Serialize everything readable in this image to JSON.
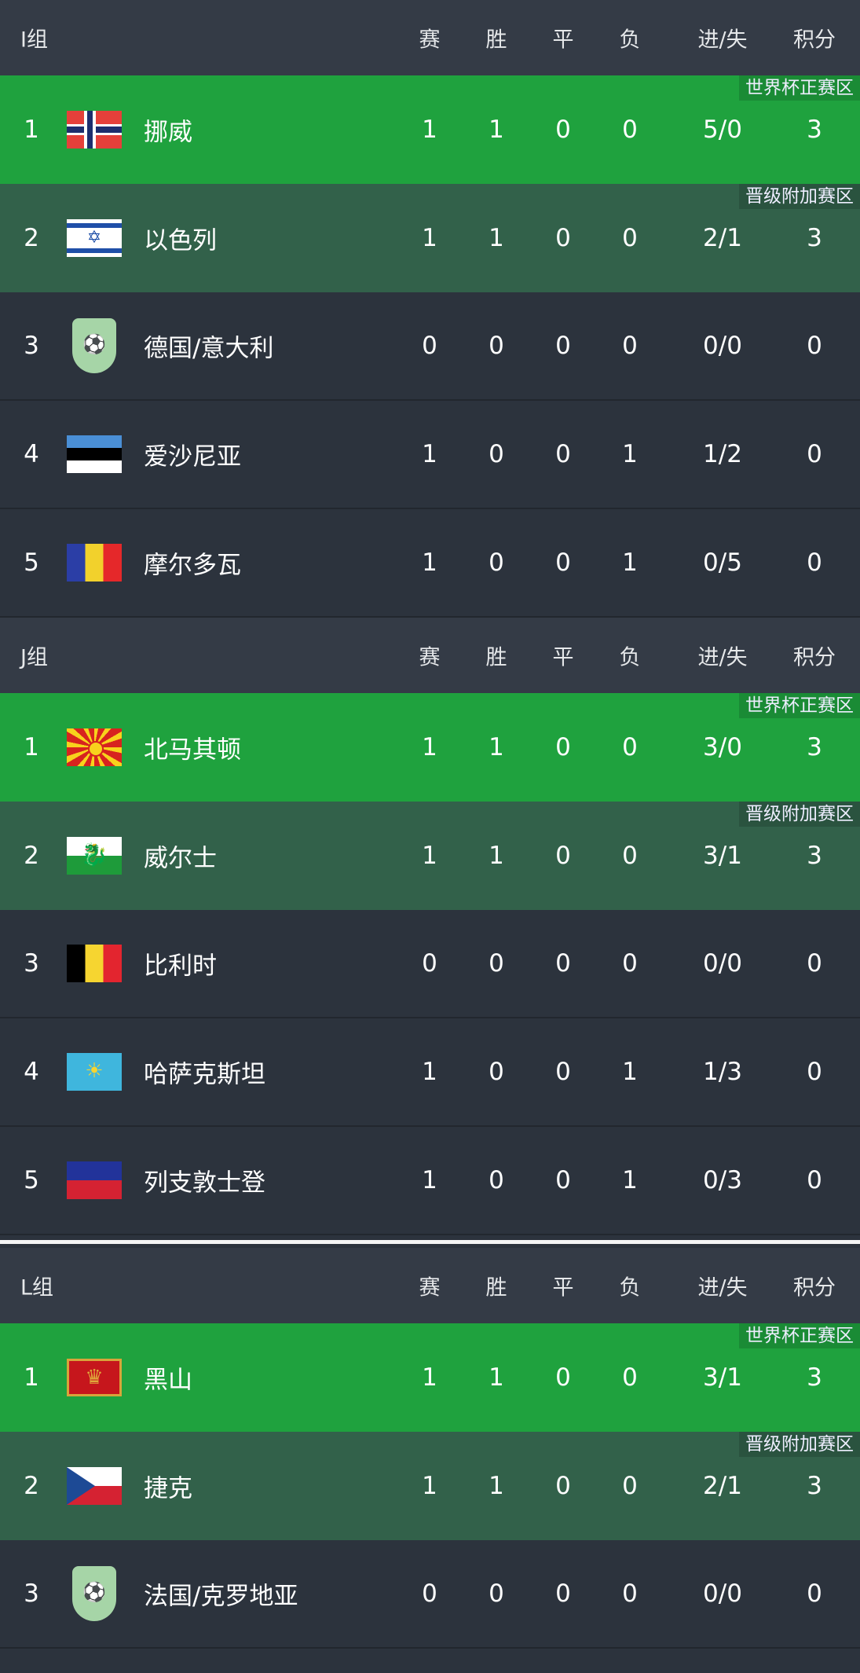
{
  "columns": [
    "赛",
    "胜",
    "平",
    "负",
    "进/失",
    "积分"
  ],
  "zones": {
    "q1": "世界杯正赛区",
    "q2": "晋级附加赛区"
  },
  "groups": [
    {
      "name": "I组",
      "rows": [
        {
          "rank": "1",
          "flag": "no",
          "team": "挪威",
          "stats": [
            "1",
            "1",
            "0",
            "0",
            "5/0",
            "3"
          ],
          "zone": "q1"
        },
        {
          "rank": "2",
          "flag": "il",
          "team": "以色列",
          "stats": [
            "1",
            "1",
            "0",
            "0",
            "2/1",
            "3"
          ],
          "zone": "q2"
        },
        {
          "rank": "3",
          "flag": "tbd",
          "team": "德国/意大利",
          "stats": [
            "0",
            "0",
            "0",
            "0",
            "0/0",
            "0"
          ]
        },
        {
          "rank": "4",
          "flag": "ee",
          "team": "爱沙尼亚",
          "stats": [
            "1",
            "0",
            "0",
            "1",
            "1/2",
            "0"
          ]
        },
        {
          "rank": "5",
          "flag": "md",
          "team": "摩尔多瓦",
          "stats": [
            "1",
            "0",
            "0",
            "1",
            "0/5",
            "0"
          ]
        }
      ]
    },
    {
      "name": "J组",
      "rows": [
        {
          "rank": "1",
          "flag": "mk",
          "team": "北马其顿",
          "stats": [
            "1",
            "1",
            "0",
            "0",
            "3/0",
            "3"
          ],
          "zone": "q1"
        },
        {
          "rank": "2",
          "flag": "wal",
          "team": "威尔士",
          "stats": [
            "1",
            "1",
            "0",
            "0",
            "3/1",
            "3"
          ],
          "zone": "q2"
        },
        {
          "rank": "3",
          "flag": "be",
          "team": "比利时",
          "stats": [
            "0",
            "0",
            "0",
            "0",
            "0/0",
            "0"
          ]
        },
        {
          "rank": "4",
          "flag": "kz",
          "team": "哈萨克斯坦",
          "stats": [
            "1",
            "0",
            "0",
            "1",
            "1/3",
            "0"
          ]
        },
        {
          "rank": "5",
          "flag": "li",
          "team": "列支敦士登",
          "stats": [
            "1",
            "0",
            "0",
            "1",
            "0/3",
            "0"
          ]
        }
      ]
    },
    {
      "name": "L组",
      "rows": [
        {
          "rank": "1",
          "flag": "me",
          "team": "黑山",
          "stats": [
            "1",
            "1",
            "0",
            "0",
            "3/1",
            "3"
          ],
          "zone": "q1"
        },
        {
          "rank": "2",
          "flag": "cz",
          "team": "捷克",
          "stats": [
            "1",
            "1",
            "0",
            "0",
            "2/1",
            "3"
          ],
          "zone": "q2"
        },
        {
          "rank": "3",
          "flag": "tbd",
          "team": "法国/克罗地亚",
          "stats": [
            "0",
            "0",
            "0",
            "0",
            "0/0",
            "0"
          ]
        }
      ]
    }
  ],
  "colors": {
    "qualify": "#1fa23e",
    "playoff": "#32614a",
    "header": "#343b46",
    "row": "#2c333d"
  }
}
